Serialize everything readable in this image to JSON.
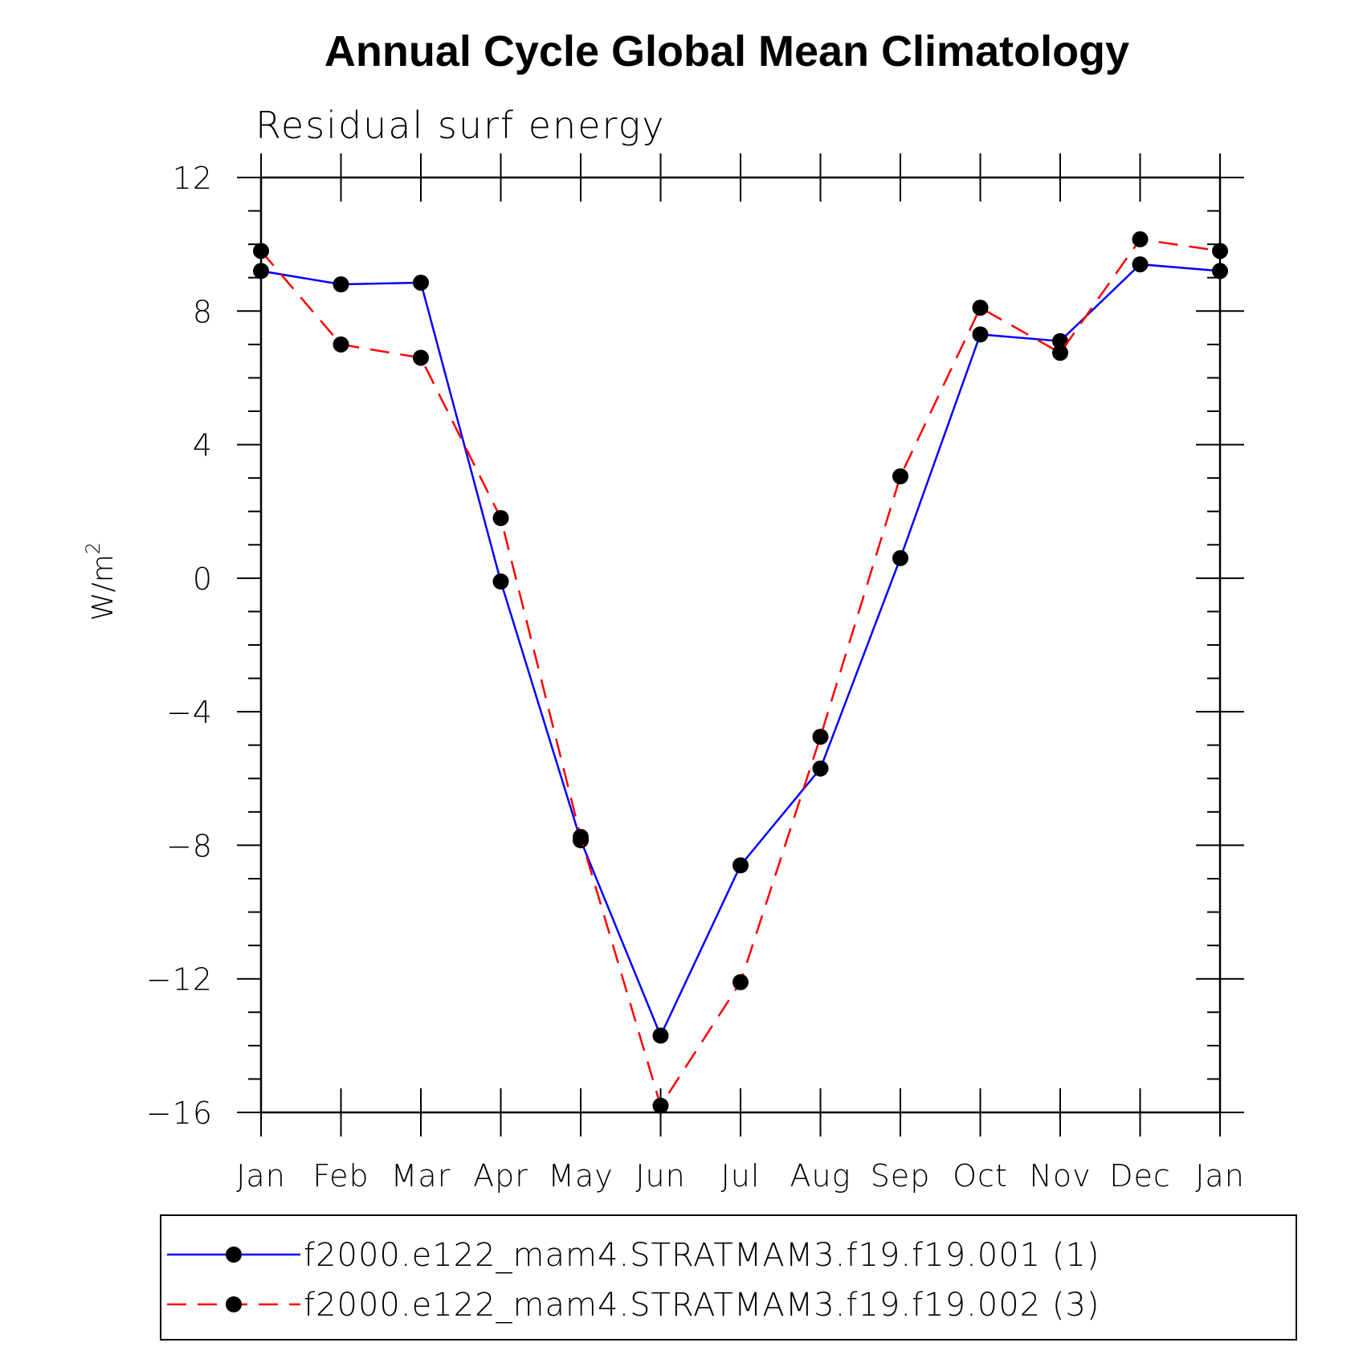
{
  "chart_data": {
    "type": "line",
    "title": "Annual Cycle Global Mean Climatology",
    "subtitle": "Residual surf energy",
    "ylabel": "W/m",
    "ylabel_superscript": "2",
    "categories": [
      "Jan",
      "Feb",
      "Mar",
      "Apr",
      "May",
      "Jun",
      "Jul",
      "Aug",
      "Sep",
      "Oct",
      "Nov",
      "Dec",
      "Jan"
    ],
    "ylim": [
      -16,
      12
    ],
    "yticks": [
      12,
      8,
      4,
      0,
      -4,
      -8,
      -12,
      -16
    ],
    "ytick_labels": [
      "12",
      "8",
      "4",
      "0",
      "−4",
      "−8",
      "−12",
      "−16"
    ],
    "grid": false,
    "legend_position": "bottom",
    "series": [
      {
        "name": "f2000.e122_mam4.STRATMAM3.f19.f19.001 (1)",
        "color": "#0000ff",
        "dash": "solid",
        "values": [
          9.2,
          8.8,
          8.85,
          -0.1,
          -7.85,
          -13.7,
          -8.6,
          -5.7,
          0.6,
          7.3,
          7.1,
          9.4,
          9.2
        ]
      },
      {
        "name": "f2000.e122_mam4.STRATMAM3.f19.f19.002 (3)",
        "color": "#ff0000",
        "dash": "dashed",
        "values": [
          9.8,
          7.0,
          6.6,
          1.8,
          -7.75,
          -15.8,
          -12.1,
          -4.75,
          3.05,
          8.1,
          6.75,
          10.15,
          9.8
        ]
      }
    ]
  }
}
